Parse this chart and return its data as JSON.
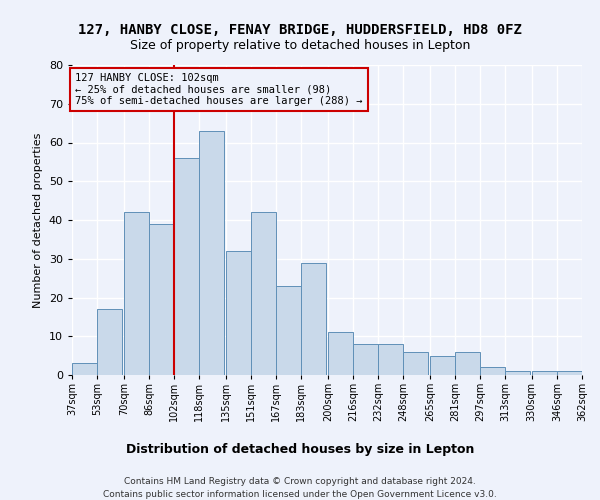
{
  "title": "127, HANBY CLOSE, FENAY BRIDGE, HUDDERSFIELD, HD8 0FZ",
  "subtitle": "Size of property relative to detached houses in Lepton",
  "xlabel": "Distribution of detached houses by size in Lepton",
  "ylabel": "Number of detached properties",
  "bar_left_edges": [
    37,
    53,
    70,
    86,
    102,
    118,
    135,
    151,
    167,
    183,
    200,
    216,
    232,
    248,
    265,
    281,
    297,
    313,
    330,
    346
  ],
  "bar_heights": [
    3,
    17,
    42,
    39,
    56,
    63,
    32,
    42,
    23,
    29,
    11,
    8,
    8,
    6,
    5,
    6,
    2,
    1,
    1,
    1
  ],
  "bin_width": 16,
  "bar_facecolor": "#c9d9ea",
  "bar_edgecolor": "#6090b8",
  "vline_x": 102,
  "vline_color": "#cc0000",
  "annotation_text": "127 HANBY CLOSE: 102sqm\n← 25% of detached houses are smaller (98)\n75% of semi-detached houses are larger (288) →",
  "annotation_box_color": "#cc0000",
  "ylim": [
    0,
    80
  ],
  "yticks": [
    0,
    10,
    20,
    30,
    40,
    50,
    60,
    70,
    80
  ],
  "tick_labels": [
    "37sqm",
    "53sqm",
    "70sqm",
    "86sqm",
    "102sqm",
    "118sqm",
    "135sqm",
    "151sqm",
    "167sqm",
    "183sqm",
    "200sqm",
    "216sqm",
    "232sqm",
    "248sqm",
    "265sqm",
    "281sqm",
    "297sqm",
    "313sqm",
    "330sqm",
    "346sqm",
    "362sqm"
  ],
  "background_color": "#eef2fb",
  "grid_color": "#ffffff",
  "footer_line1": "Contains HM Land Registry data © Crown copyright and database right 2024.",
  "footer_line2": "Contains public sector information licensed under the Open Government Licence v3.0."
}
